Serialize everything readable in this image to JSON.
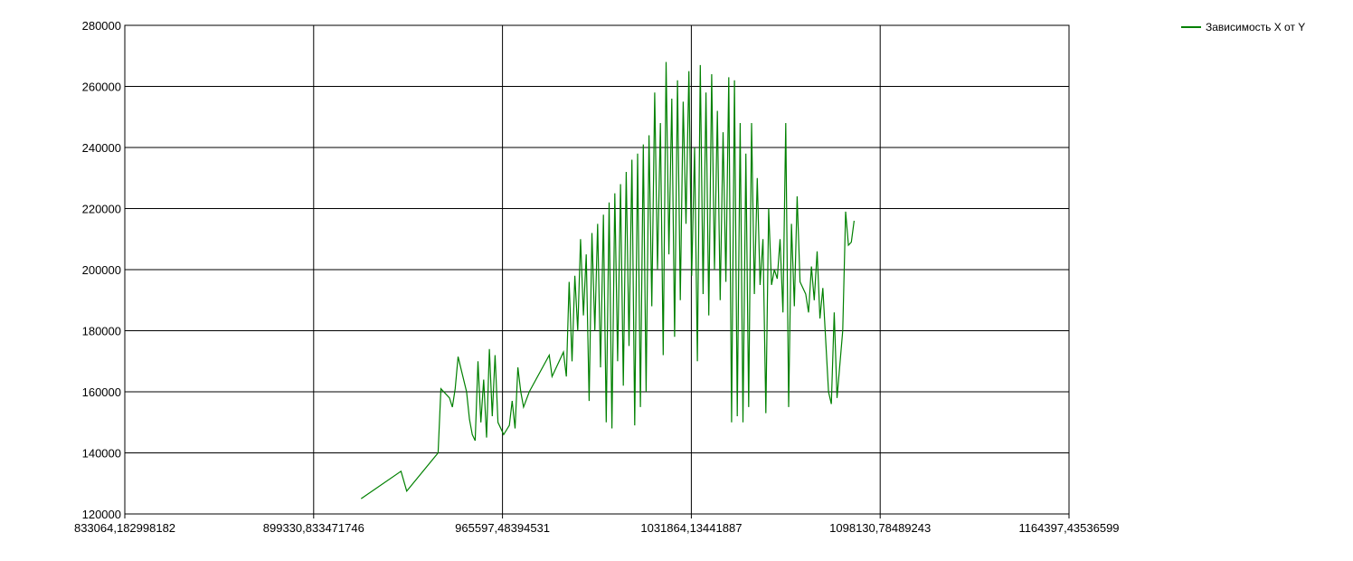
{
  "chart_data": {
    "type": "line",
    "title": "",
    "xlabel": "",
    "ylabel": "",
    "xlim": [
      833064.182998182,
      1164397.43536599
    ],
    "ylim": [
      120000,
      280000
    ],
    "x_ticks": [
      833064.182998182,
      899330.833471746,
      965597.48394531,
      1031864.13441887,
      1098130.78489243,
      1164397.43536599
    ],
    "x_tick_labels": [
      "833064,182998182",
      "899330,833471746",
      "965597,48394531",
      "1031864,13441887",
      "1098130,78489243",
      "1164397,43536599"
    ],
    "y_ticks": [
      120000,
      140000,
      160000,
      180000,
      200000,
      220000,
      240000,
      260000,
      280000
    ],
    "y_tick_labels": [
      "120000",
      "140000",
      "160000",
      "180000",
      "200000",
      "220000",
      "240000",
      "260000",
      "280000"
    ],
    "grid": true,
    "legend_position": "top-right",
    "series": [
      {
        "name": "Зависимость X от Y",
        "color": "#008000",
        "points": [
          [
            916000,
            125000
          ],
          [
            930000,
            134000
          ],
          [
            932000,
            127500
          ],
          [
            943000,
            140000
          ],
          [
            944000,
            161000
          ],
          [
            947000,
            158000
          ],
          [
            948000,
            155000
          ],
          [
            949000,
            161000
          ],
          [
            950000,
            171500
          ],
          [
            953000,
            160000
          ],
          [
            954000,
            151000
          ],
          [
            955000,
            146000
          ],
          [
            956000,
            144000
          ],
          [
            957000,
            170000
          ],
          [
            958000,
            150000
          ],
          [
            959000,
            164000
          ],
          [
            960000,
            145000
          ],
          [
            961000,
            174000
          ],
          [
            962000,
            152000
          ],
          [
            963000,
            172000
          ],
          [
            964000,
            150000
          ],
          [
            966000,
            146000
          ],
          [
            968000,
            149000
          ],
          [
            969000,
            157000
          ],
          [
            970000,
            148000
          ],
          [
            971000,
            168000
          ],
          [
            972000,
            160000
          ],
          [
            973000,
            155000
          ],
          [
            975000,
            160000
          ],
          [
            982000,
            172000
          ],
          [
            983000,
            165000
          ],
          [
            985000,
            169000
          ],
          [
            987000,
            173000
          ],
          [
            988000,
            165000
          ],
          [
            989000,
            196000
          ],
          [
            990000,
            170000
          ],
          [
            991000,
            198000
          ],
          [
            992000,
            180000
          ],
          [
            993000,
            210000
          ],
          [
            994000,
            185000
          ],
          [
            995000,
            205000
          ],
          [
            996000,
            157000
          ],
          [
            997000,
            212000
          ],
          [
            998000,
            180000
          ],
          [
            999000,
            215000
          ],
          [
            1000000,
            168000
          ],
          [
            1001000,
            218000
          ],
          [
            1002000,
            150000
          ],
          [
            1003000,
            222000
          ],
          [
            1004000,
            148000
          ],
          [
            1005000,
            225000
          ],
          [
            1006000,
            170000
          ],
          [
            1007000,
            228000
          ],
          [
            1008000,
            162000
          ],
          [
            1009000,
            232000
          ],
          [
            1010000,
            175000
          ],
          [
            1011000,
            236000
          ],
          [
            1012000,
            149000
          ],
          [
            1013000,
            238000
          ],
          [
            1014000,
            155000
          ],
          [
            1015000,
            241000
          ],
          [
            1016000,
            160000
          ],
          [
            1017000,
            244000
          ],
          [
            1018000,
            188000
          ],
          [
            1019000,
            258000
          ],
          [
            1020000,
            200000
          ],
          [
            1021000,
            248000
          ],
          [
            1022000,
            172000
          ],
          [
            1023000,
            268000
          ],
          [
            1024000,
            205000
          ],
          [
            1025000,
            256000
          ],
          [
            1026000,
            178000
          ],
          [
            1027000,
            262000
          ],
          [
            1028000,
            190000
          ],
          [
            1029000,
            255000
          ],
          [
            1030000,
            215000
          ],
          [
            1031000,
            265000
          ],
          [
            1032000,
            198000
          ],
          [
            1033000,
            240000
          ],
          [
            1034000,
            170000
          ],
          [
            1035000,
            267000
          ],
          [
            1036000,
            192000
          ],
          [
            1037000,
            258000
          ],
          [
            1038000,
            185000
          ],
          [
            1039000,
            264000
          ],
          [
            1040000,
            200000
          ],
          [
            1041000,
            252000
          ],
          [
            1042000,
            190000
          ],
          [
            1043000,
            245000
          ],
          [
            1044000,
            196000
          ],
          [
            1045000,
            263000
          ],
          [
            1046000,
            150000
          ],
          [
            1047000,
            262000
          ],
          [
            1048000,
            152000
          ],
          [
            1049000,
            248000
          ],
          [
            1050000,
            150000
          ],
          [
            1051000,
            238000
          ],
          [
            1052000,
            155000
          ],
          [
            1053000,
            248000
          ],
          [
            1054000,
            192000
          ],
          [
            1055000,
            230000
          ],
          [
            1056000,
            195000
          ],
          [
            1057000,
            210000
          ],
          [
            1058000,
            153000
          ],
          [
            1059000,
            220000
          ],
          [
            1060000,
            195000
          ],
          [
            1061000,
            200000
          ],
          [
            1062000,
            197000
          ],
          [
            1063000,
            210000
          ],
          [
            1064000,
            186000
          ],
          [
            1065000,
            248000
          ],
          [
            1066000,
            155000
          ],
          [
            1067000,
            215000
          ],
          [
            1068000,
            188000
          ],
          [
            1069000,
            224000
          ],
          [
            1070000,
            196000
          ],
          [
            1072000,
            192000
          ],
          [
            1073000,
            186000
          ],
          [
            1074000,
            201000
          ],
          [
            1075000,
            190000
          ],
          [
            1076000,
            206000
          ],
          [
            1077000,
            184000
          ],
          [
            1078000,
            194000
          ],
          [
            1080000,
            160000
          ],
          [
            1081000,
            156000
          ],
          [
            1082000,
            186000
          ],
          [
            1083000,
            158000
          ],
          [
            1085000,
            180000
          ],
          [
            1086000,
            219000
          ],
          [
            1087000,
            208000
          ],
          [
            1088000,
            209000
          ],
          [
            1089000,
            216000
          ]
        ]
      }
    ]
  }
}
